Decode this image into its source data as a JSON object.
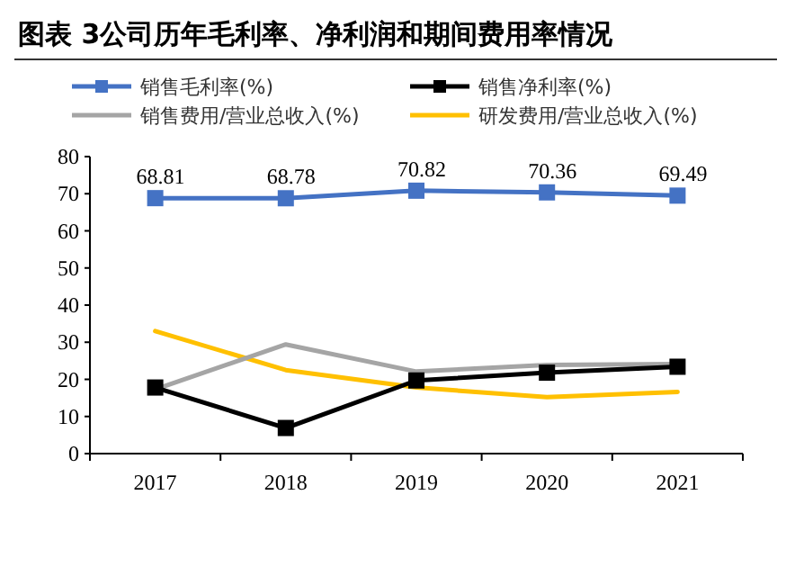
{
  "chart_data": {
    "type": "line",
    "title": "图表 3公司历年毛利率、净利润和期间费用率情况",
    "categories": [
      "2017",
      "2018",
      "2019",
      "2020",
      "2021"
    ],
    "series": [
      {
        "name": "销售毛利率(%)",
        "color": "#4472c4",
        "marker": "square",
        "values": [
          68.81,
          68.78,
          70.82,
          70.36,
          69.49
        ],
        "value_labels": [
          "68.81",
          "68.78",
          "70.82",
          "70.36",
          "69.49"
        ]
      },
      {
        "name": "销售净利率(%)",
        "color": "#000000",
        "marker": "square",
        "values": [
          17.8,
          6.9,
          19.7,
          21.8,
          23.4
        ]
      },
      {
        "name": "销售费用/营业总收入(%)",
        "color": "#a5a5a5",
        "marker": "none",
        "values": [
          17.3,
          29.4,
          22.1,
          23.9,
          24.1
        ]
      },
      {
        "name": "研发费用/营业总收入(%)",
        "color": "#ffc000",
        "marker": "none",
        "values": [
          33.0,
          22.5,
          17.8,
          15.2,
          16.6
        ]
      }
    ],
    "ylim": [
      0,
      80
    ],
    "yticks": [
      0,
      10,
      20,
      30,
      40,
      50,
      60,
      70,
      80
    ],
    "grid": false,
    "legend": "top",
    "line_style": "solid"
  }
}
